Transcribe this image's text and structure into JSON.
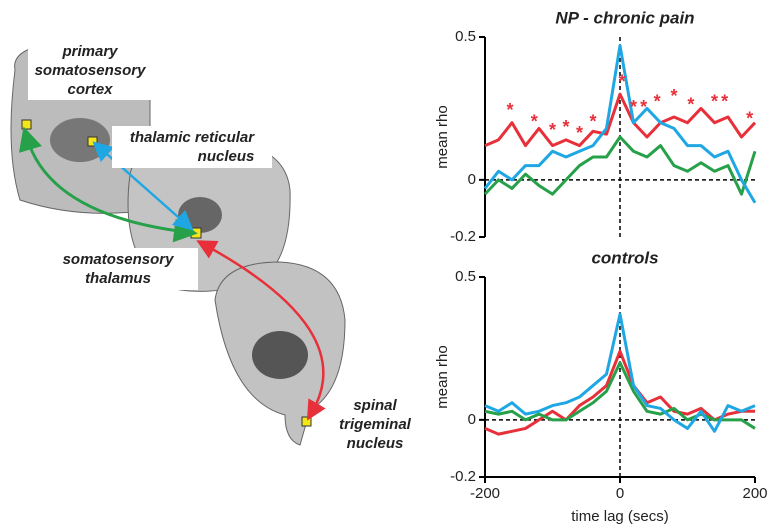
{
  "diagram": {
    "labels": [
      {
        "lines": [
          "primary",
          "somatosensory",
          "cortex"
        ]
      },
      {
        "lines": [
          "thalamic reticular",
          "nucleus"
        ]
      },
      {
        "lines": [
          "somatosensory",
          "thalamus"
        ]
      },
      {
        "lines": [
          "spinal",
          "trigeminal",
          "nucleus"
        ]
      }
    ]
  },
  "chart_data": [
    {
      "type": "line",
      "title": "NP - chronic pain",
      "ylabel": "mean rho",
      "x": [
        -200,
        -180,
        -160,
        -140,
        -120,
        -100,
        -80,
        -60,
        -40,
        -20,
        0,
        20,
        40,
        60,
        80,
        100,
        120,
        140,
        160,
        180,
        200
      ],
      "xlim": [
        -200,
        200
      ],
      "ylim": [
        -0.2,
        0.5
      ],
      "yticks": [
        -0.2,
        0,
        0.5
      ],
      "zero_lines": true,
      "series": [
        {
          "color": "#e8303a",
          "values": [
            0.12,
            0.14,
            0.2,
            0.12,
            0.18,
            0.12,
            0.14,
            0.12,
            0.17,
            0.16,
            0.3,
            0.2,
            0.15,
            0.2,
            0.22,
            0.2,
            0.25,
            0.2,
            0.22,
            0.15,
            0.2
          ]
        },
        {
          "color": "#27a04a",
          "values": [
            -0.05,
            0.0,
            -0.03,
            0.02,
            -0.02,
            -0.05,
            0.0,
            0.05,
            0.08,
            0.08,
            0.15,
            0.1,
            0.08,
            0.12,
            0.05,
            0.03,
            0.06,
            0.03,
            0.05,
            -0.05,
            0.1
          ]
        },
        {
          "color": "#1fa7e3",
          "values": [
            -0.03,
            0.03,
            0.0,
            0.05,
            0.05,
            0.1,
            0.08,
            0.1,
            0.12,
            0.18,
            0.47,
            0.2,
            0.25,
            0.2,
            0.18,
            0.12,
            0.12,
            0.08,
            0.1,
            0.0,
            -0.08
          ]
        }
      ],
      "annotations": [
        {
          "text": "*",
          "x": -163,
          "y": 0.24
        },
        {
          "text": "*",
          "x": -127,
          "y": 0.2
        },
        {
          "text": "*",
          "x": -100,
          "y": 0.17
        },
        {
          "text": "*",
          "x": -80,
          "y": 0.18
        },
        {
          "text": "*",
          "x": -60,
          "y": 0.16
        },
        {
          "text": "*",
          "x": -40,
          "y": 0.2
        },
        {
          "text": "*",
          "x": 3,
          "y": 0.34
        },
        {
          "text": "*",
          "x": 20,
          "y": 0.25
        },
        {
          "text": "*",
          "x": 35,
          "y": 0.25
        },
        {
          "text": "*",
          "x": 55,
          "y": 0.27
        },
        {
          "text": "*",
          "x": 80,
          "y": 0.29
        },
        {
          "text": "*",
          "x": 105,
          "y": 0.26
        },
        {
          "text": "*",
          "x": 140,
          "y": 0.27
        },
        {
          "text": "*",
          "x": 155,
          "y": 0.27
        },
        {
          "text": "*",
          "x": 192,
          "y": 0.21
        }
      ]
    },
    {
      "type": "line",
      "title": "controls",
      "ylabel": "mean rho",
      "xlabel": "time lag (secs)",
      "x": [
        -200,
        -180,
        -160,
        -140,
        -120,
        -100,
        -80,
        -60,
        -40,
        -20,
        0,
        20,
        40,
        60,
        80,
        100,
        120,
        140,
        160,
        180,
        200
      ],
      "xlim": [
        -200,
        200
      ],
      "xticks": [
        -200,
        0,
        200
      ],
      "ylim": [
        -0.2,
        0.5
      ],
      "yticks": [
        -0.2,
        0,
        0.5
      ],
      "zero_lines": true,
      "series": [
        {
          "color": "#e8303a",
          "values": [
            -0.03,
            -0.05,
            -0.04,
            -0.03,
            0.0,
            0.03,
            0.0,
            0.05,
            0.08,
            0.12,
            0.24,
            0.12,
            0.06,
            0.08,
            0.03,
            0.02,
            0.04,
            0.0,
            0.02,
            0.03,
            0.03
          ]
        },
        {
          "color": "#27a04a",
          "values": [
            0.03,
            0.02,
            0.03,
            0.0,
            0.02,
            0.0,
            0.0,
            0.03,
            0.06,
            0.1,
            0.2,
            0.1,
            0.03,
            0.02,
            0.04,
            0.0,
            0.02,
            0.0,
            0.0,
            0.0,
            -0.03
          ]
        },
        {
          "color": "#1fa7e3",
          "values": [
            0.05,
            0.03,
            0.06,
            0.02,
            0.03,
            0.05,
            0.06,
            0.08,
            0.12,
            0.16,
            0.37,
            0.12,
            0.05,
            0.04,
            0.0,
            -0.03,
            0.03,
            -0.04,
            0.05,
            0.03,
            0.05
          ]
        }
      ]
    }
  ]
}
